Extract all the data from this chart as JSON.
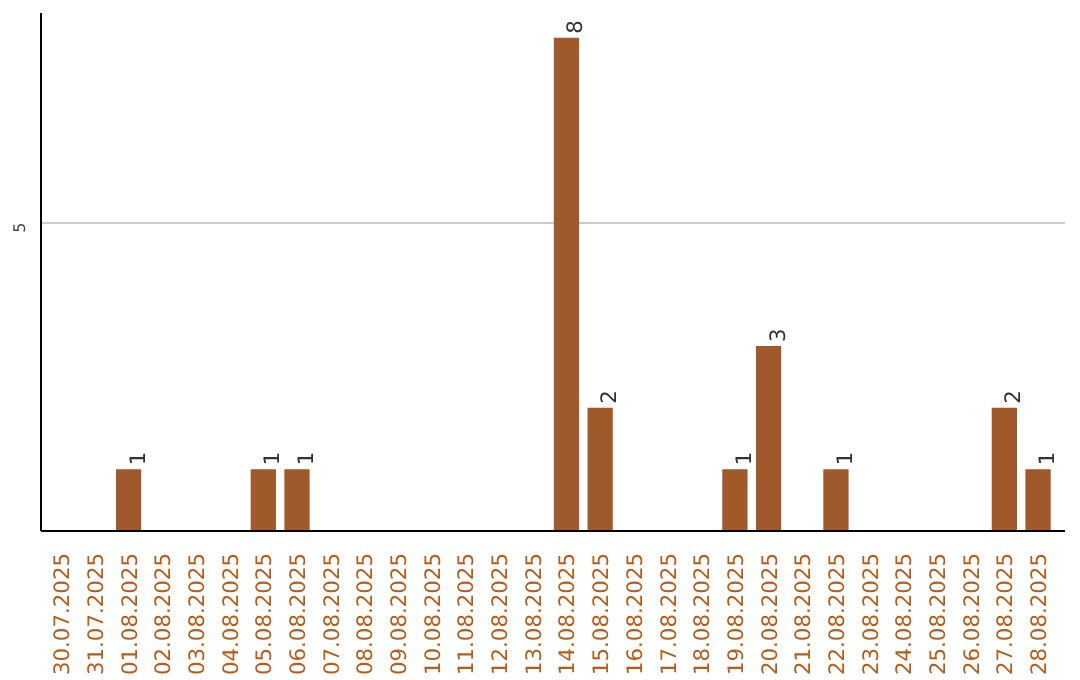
{
  "chart_data": {
    "type": "bar",
    "categories": [
      "30.07.2025",
      "31.07.2025",
      "01.08.2025",
      "02.08.2025",
      "03.08.2025",
      "04.08.2025",
      "05.08.2025",
      "06.08.2025",
      "07.08.2025",
      "08.08.2025",
      "09.08.2025",
      "10.08.2025",
      "11.08.2025",
      "12.08.2025",
      "13.08.2025",
      "14.08.2025",
      "15.08.2025",
      "16.08.2025",
      "17.08.2025",
      "18.08.2025",
      "19.08.2025",
      "20.08.2025",
      "21.08.2025",
      "22.08.2025",
      "23.08.2025",
      "24.08.2025",
      "25.08.2025",
      "26.08.2025",
      "27.08.2025",
      "28.08.2025"
    ],
    "values": [
      0,
      0,
      1,
      0,
      0,
      0,
      1,
      1,
      0,
      0,
      0,
      0,
      0,
      0,
      0,
      8,
      2,
      0,
      0,
      0,
      1,
      3,
      0,
      1,
      0,
      0,
      0,
      0,
      2,
      1
    ],
    "value_labels": [
      null,
      null,
      "1",
      null,
      null,
      null,
      "1",
      "1",
      null,
      null,
      null,
      null,
      null,
      null,
      null,
      "8",
      "2",
      null,
      null,
      null,
      "1",
      "3",
      null,
      "1",
      null,
      null,
      null,
      null,
      "2",
      "1"
    ],
    "color": "#a0592b",
    "ylim": [
      0,
      8.4
    ],
    "yticks": [
      5
    ],
    "grid": "y"
  }
}
